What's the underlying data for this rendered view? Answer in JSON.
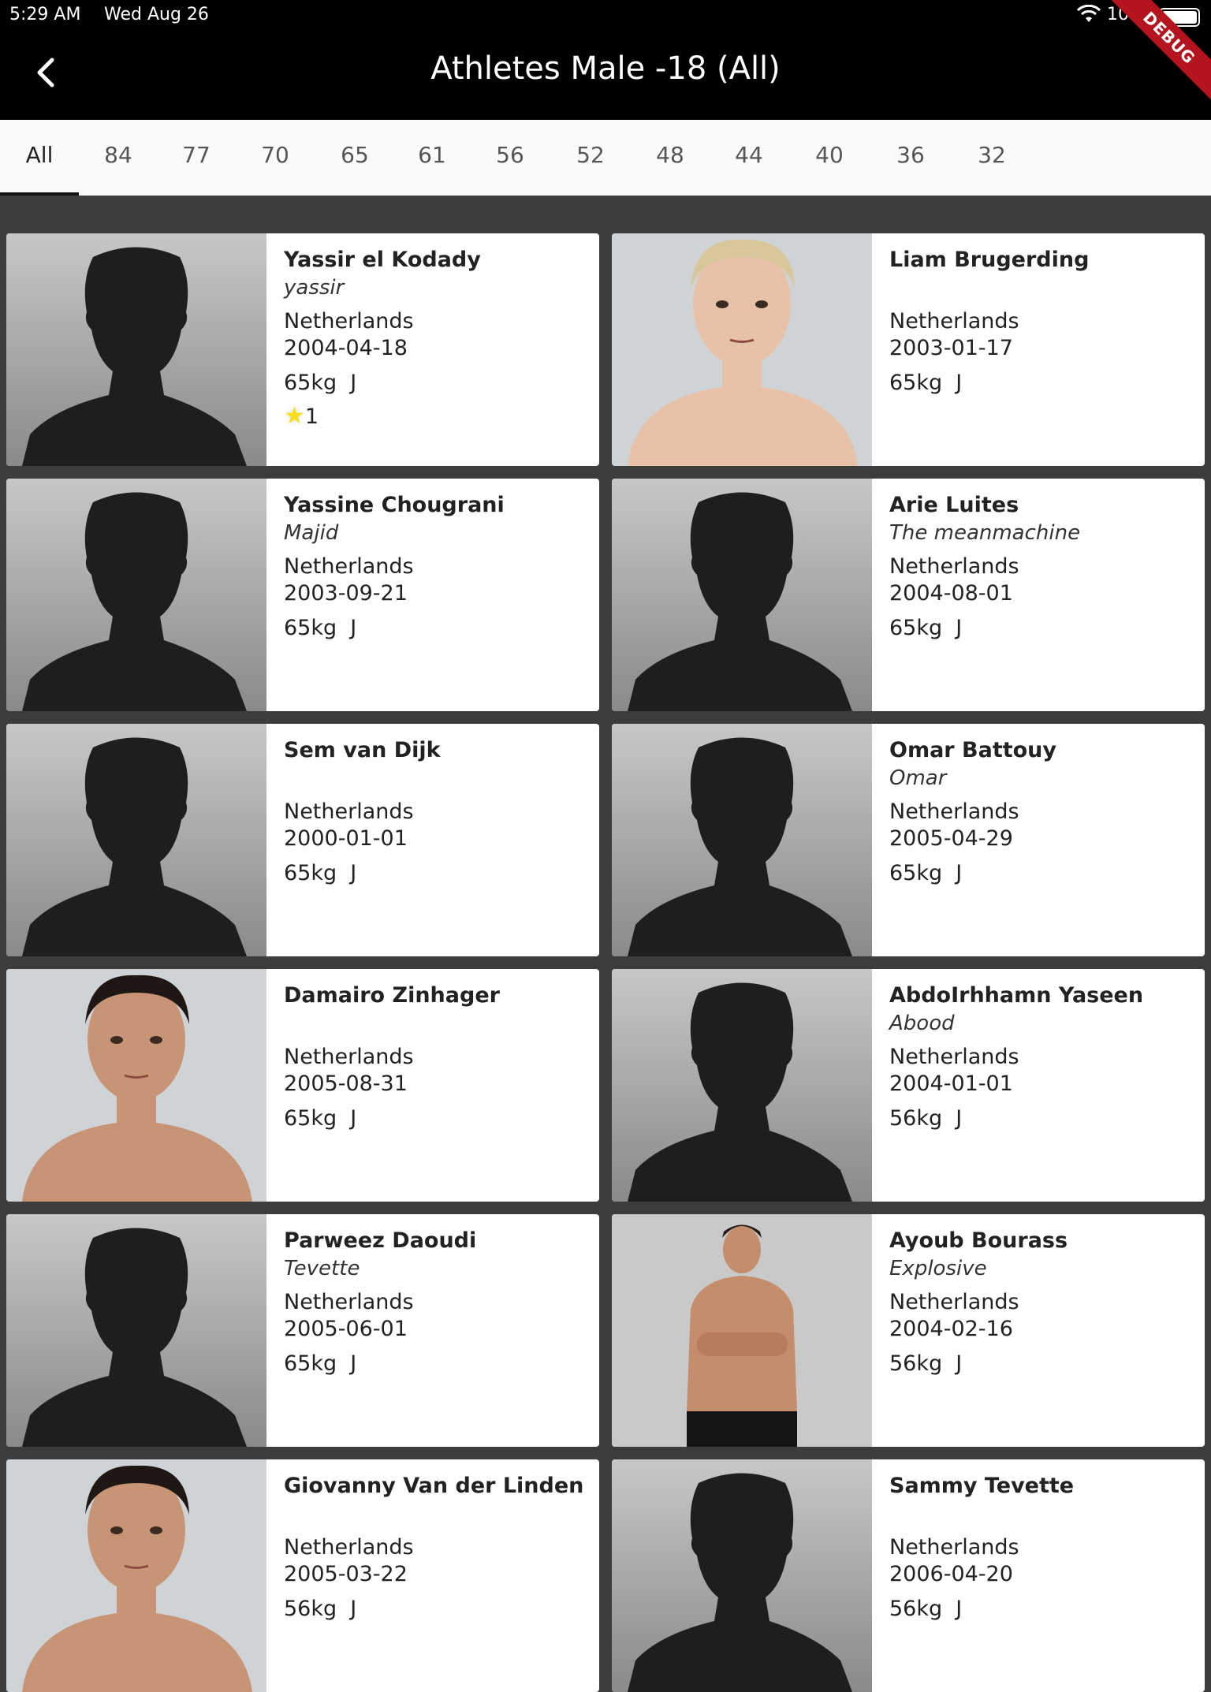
{
  "status_bar": {
    "time": "5:29 AM",
    "date": "Wed Aug 26",
    "battery": "100%"
  },
  "debug_banner": "DEBUG",
  "app_bar": {
    "title": "Athletes Male -18 (All)",
    "back_icon": "chevron-left-icon"
  },
  "tabs": [
    {
      "label": "All",
      "active": true
    },
    {
      "label": "84"
    },
    {
      "label": "77"
    },
    {
      "label": "70"
    },
    {
      "label": "65"
    },
    {
      "label": "61"
    },
    {
      "label": "56"
    },
    {
      "label": "52"
    },
    {
      "label": "48"
    },
    {
      "label": "44"
    },
    {
      "label": "40"
    },
    {
      "label": "36"
    },
    {
      "label": "32"
    }
  ],
  "athletes": [
    {
      "name": "Yassir el Kodady",
      "nickname": "yassir",
      "country": "Netherlands",
      "dob": "2004-04-18",
      "weight": "65kg  J",
      "stars": "1",
      "photo": "silhouette"
    },
    {
      "name": "Liam Brugerding",
      "nickname": "",
      "country": "Netherlands",
      "dob": "2003-01-17",
      "weight": "65kg  J",
      "photo": "portrait-blond"
    },
    {
      "name": "Yassine Chougrani",
      "nickname": "Majid",
      "country": "Netherlands",
      "dob": "2003-09-21",
      "weight": "65kg  J",
      "photo": "silhouette"
    },
    {
      "name": "Arie Luites",
      "nickname": "The meanmachine",
      "country": "Netherlands",
      "dob": "2004-08-01",
      "weight": "65kg  J",
      "photo": "silhouette"
    },
    {
      "name": "Sem van Dijk",
      "nickname": "",
      "country": "Netherlands",
      "dob": "2000-01-01",
      "weight": "65kg  J",
      "photo": "silhouette"
    },
    {
      "name": "Omar Battouy",
      "nickname": "Omar",
      "country": "Netherlands",
      "dob": "2005-04-29",
      "weight": "65kg  J",
      "photo": "silhouette"
    },
    {
      "name": "Damairo Zinhager",
      "nickname": "",
      "country": "Netherlands",
      "dob": "2005-08-31",
      "weight": "65kg  J",
      "photo": "portrait-dark"
    },
    {
      "name": "AbdoIrhhamn Yaseen",
      "nickname": "Abood",
      "country": "Netherlands",
      "dob": "2004-01-01",
      "weight": "56kg  J",
      "photo": "silhouette"
    },
    {
      "name": "Parweez Daoudi",
      "nickname": "Tevette",
      "country": "Netherlands",
      "dob": "2005-06-01",
      "weight": "65kg  J",
      "photo": "silhouette"
    },
    {
      "name": "Ayoub Bourass",
      "nickname": "Explosive",
      "country": "Netherlands",
      "dob": "2004-02-16",
      "weight": "56kg  J",
      "photo": "portrait-standing"
    },
    {
      "name": "Giovanny Van der Linden",
      "nickname": "",
      "country": "Netherlands",
      "dob": "2005-03-22",
      "weight": "56kg  J",
      "photo": "portrait-dark"
    },
    {
      "name": "Sammy Tevette",
      "nickname": "",
      "country": "Netherlands",
      "dob": "2006-04-20",
      "weight": "56kg  J",
      "photo": "silhouette"
    }
  ]
}
